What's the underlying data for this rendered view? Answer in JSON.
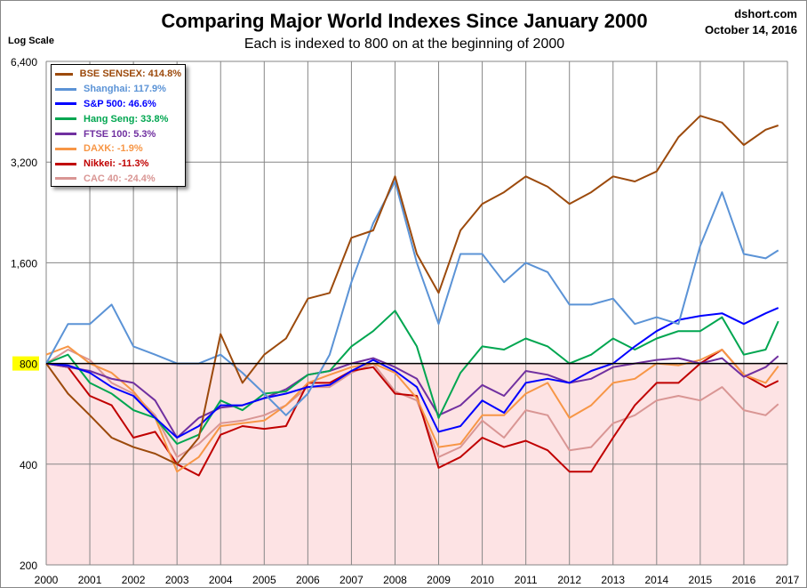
{
  "title": "Comparing Major World Indexes Since January 2000",
  "subtitle": "Each is indexed to 800 on at the beginning of 2000",
  "source": "dshort.com",
  "date": "October 14, 2016",
  "chart_data": {
    "type": "line",
    "title": "Comparing Major World Indexes Since January 2000",
    "subtitle": "Each is indexed to 800 on at the beginning of 2000",
    "ylabel": "Log Scale",
    "xlabel": "",
    "yscale": "log",
    "ylim": [
      200,
      6400
    ],
    "xlim": [
      2000,
      2017
    ],
    "y_ticks": [
      200,
      400,
      800,
      1600,
      3200,
      6400
    ],
    "y_tick_labels": [
      "200",
      "400",
      "800",
      "1,600",
      "3,200",
      "6,400"
    ],
    "x_ticks": [
      "2000",
      "2001",
      "2002",
      "2003",
      "2004",
      "2005",
      "2006",
      "2007",
      "2008",
      "2009",
      "2010",
      "2011",
      "2012",
      "2013",
      "2014",
      "2015",
      "2016",
      "2017"
    ],
    "reference_line": 800,
    "shade_below_reference": "#fde3e4",
    "grid": true,
    "legend_position": "top-left",
    "x": [
      2000,
      2000.5,
      2001,
      2001.5,
      2002,
      2002.5,
      2003,
      2003.5,
      2004,
      2004.5,
      2005,
      2005.5,
      2006,
      2006.5,
      2007,
      2007.5,
      2008,
      2008.5,
      2009,
      2009.5,
      2010,
      2010.5,
      2011,
      2011.5,
      2012,
      2012.5,
      2013,
      2013.5,
      2014,
      2014.5,
      2015,
      2015.5,
      2016,
      2016.5,
      2016.79
    ],
    "series": [
      {
        "name": "BSE SENSEX",
        "label": "BSE SENSEX: 414.8%",
        "color": "#9c4a0c",
        "values": [
          800,
          650,
          560,
          480,
          450,
          430,
          400,
          480,
          980,
          700,
          850,
          950,
          1250,
          1300,
          1900,
          2000,
          2900,
          1700,
          1300,
          2000,
          2400,
          2600,
          2900,
          2700,
          2400,
          2600,
          2900,
          2800,
          3000,
          3800,
          4400,
          4200,
          3600,
          4000,
          4118
        ]
      },
      {
        "name": "Shanghai",
        "label": "Shanghai: 117.9%",
        "color": "#5b93d6",
        "values": [
          800,
          1050,
          1050,
          1200,
          900,
          850,
          800,
          800,
          850,
          750,
          650,
          560,
          650,
          850,
          1400,
          2100,
          2800,
          1600,
          1050,
          1700,
          1700,
          1400,
          1600,
          1500,
          1200,
          1200,
          1250,
          1050,
          1100,
          1050,
          1800,
          2600,
          1700,
          1650,
          1743
        ]
      },
      {
        "name": "S&P 500",
        "label": "S&P 500: 46.6%",
        "color": "#0000ff",
        "values": [
          800,
          790,
          750,
          680,
          640,
          550,
          480,
          520,
          600,
          600,
          630,
          650,
          680,
          690,
          760,
          820,
          760,
          680,
          500,
          520,
          620,
          570,
          700,
          720,
          700,
          760,
          800,
          900,
          1000,
          1080,
          1110,
          1130,
          1050,
          1130,
          1173
        ]
      },
      {
        "name": "Hang Seng",
        "label": "Hang Seng: 33.8%",
        "color": "#00a650",
        "values": [
          800,
          850,
          700,
          650,
          580,
          550,
          460,
          490,
          620,
          580,
          650,
          660,
          740,
          760,
          900,
          1000,
          1150,
          900,
          550,
          750,
          900,
          880,
          950,
          900,
          800,
          850,
          950,
          880,
          950,
          1000,
          1000,
          1100,
          850,
          880,
          1070
        ]
      },
      {
        "name": "FTSE 100",
        "label": "FTSE 100: 5.3%",
        "color": "#7030a0",
        "values": [
          800,
          780,
          760,
          720,
          700,
          620,
          480,
          550,
          590,
          600,
          630,
          670,
          740,
          760,
          800,
          830,
          780,
          720,
          560,
          600,
          690,
          640,
          760,
          740,
          700,
          720,
          780,
          800,
          820,
          830,
          800,
          830,
          730,
          780,
          842
        ]
      },
      {
        "name": "DAXK",
        "label": "DAXK: -1.9%",
        "color": "#f79646",
        "values": [
          850,
          900,
          800,
          750,
          660,
          550,
          380,
          420,
          520,
          530,
          540,
          600,
          700,
          740,
          780,
          800,
          750,
          630,
          450,
          460,
          560,
          560,
          650,
          700,
          550,
          600,
          700,
          720,
          800,
          790,
          820,
          880,
          740,
          700,
          785
        ]
      },
      {
        "name": "Nikkei",
        "label": "Nikkei: -11.3%",
        "color": "#c00000",
        "values": [
          800,
          780,
          640,
          600,
          480,
          500,
          400,
          370,
          490,
          520,
          510,
          520,
          700,
          700,
          760,
          780,
          650,
          640,
          390,
          420,
          480,
          450,
          470,
          440,
          380,
          380,
          480,
          600,
          700,
          700,
          800,
          880,
          740,
          680,
          710
        ]
      },
      {
        "name": "CAC 40",
        "label": "CAC 40: -24.4%",
        "color": "#d99694",
        "values": [
          800,
          880,
          820,
          700,
          650,
          560,
          420,
          460,
          530,
          540,
          560,
          600,
          680,
          680,
          750,
          800,
          660,
          620,
          420,
          450,
          540,
          480,
          580,
          560,
          440,
          450,
          530,
          560,
          620,
          640,
          620,
          680,
          580,
          560,
          605
        ]
      }
    ]
  }
}
